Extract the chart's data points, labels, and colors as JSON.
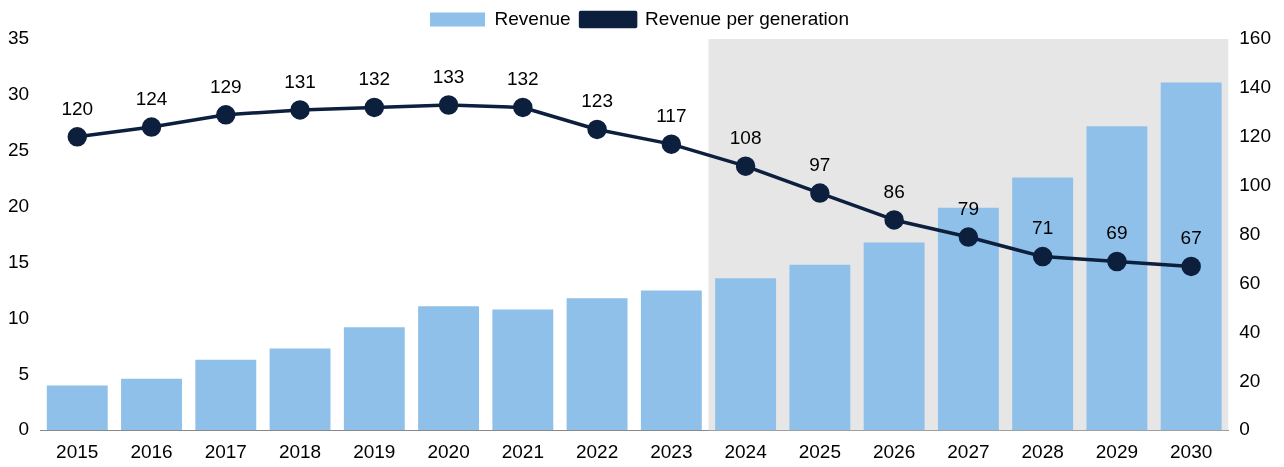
{
  "chart_data": {
    "type": "bar",
    "categories": [
      "2015",
      "2016",
      "2017",
      "2018",
      "2019",
      "2020",
      "2021",
      "2022",
      "2023",
      "2024",
      "2025",
      "2026",
      "2027",
      "2028",
      "2029",
      "2030"
    ],
    "series": [
      {
        "name": "Revenue",
        "color": "#8fc0e9",
        "values": [
          4.0,
          4.6,
          6.3,
          7.3,
          9.2,
          11.1,
          10.8,
          11.8,
          12.5,
          13.6,
          14.8,
          16.8,
          19.9,
          22.6,
          27.2,
          31.1
        ]
      },
      {
        "name": "Revenue per generation",
        "type": "line",
        "axis": "y2",
        "color": "#0c1f3d",
        "values": [
          120,
          124,
          129,
          131,
          132,
          133,
          132,
          123,
          117,
          108,
          97,
          86,
          79,
          71,
          69,
          67
        ],
        "value_labels": [
          "120",
          "124",
          "129",
          "131",
          "132",
          "133",
          "132",
          "123",
          "117",
          "108",
          "97",
          "86",
          "79",
          "71",
          "69",
          "67"
        ]
      }
    ],
    "ylim": [
      0,
      35
    ],
    "yticks": [
      0,
      5,
      10,
      15,
      20,
      25,
      30,
      35
    ],
    "y2lim": [
      0,
      160
    ],
    "y2ticks": [
      0,
      20,
      40,
      60,
      80,
      100,
      120,
      140,
      160
    ],
    "bands": [
      {
        "axis": "x",
        "from": "2024",
        "to": "2030",
        "color": "#e6e6e6"
      }
    ],
    "legend": "top",
    "grid": false,
    "marker": "circle",
    "line_style": "solid"
  }
}
